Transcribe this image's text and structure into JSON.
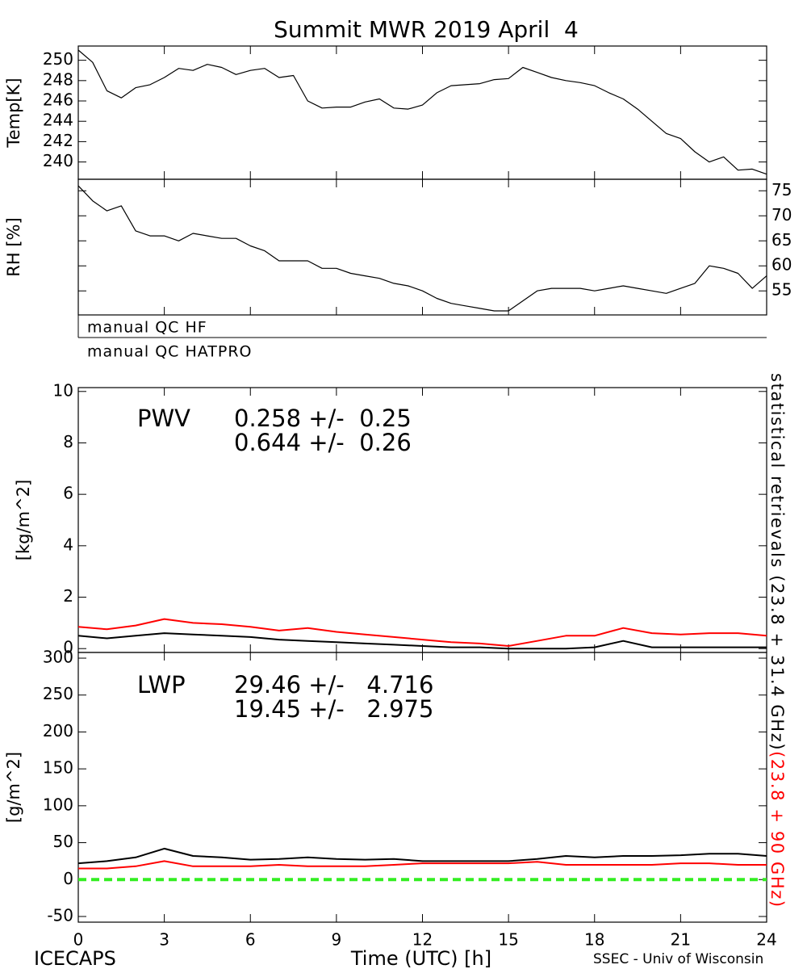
{
  "chart_data": [
    {
      "type": "line",
      "title": "Summit MWR 2019 April  4",
      "ylabel": "Temp[K]",
      "xlim": [
        0,
        24
      ],
      "xticks": [
        0,
        3,
        6,
        9,
        12,
        15,
        18,
        21,
        24
      ],
      "show_xtick_labels": false,
      "ylim": [
        238.3,
        251.4
      ],
      "yticks": [
        240,
        242,
        244,
        246,
        248,
        250
      ],
      "yaxis_side": "left",
      "x": [
        0,
        0.5,
        1,
        1.5,
        2,
        2.5,
        3,
        3.5,
        4,
        4.5,
        5,
        5.5,
        6,
        6.5,
        7,
        7.5,
        8,
        8.5,
        9,
        9.5,
        10,
        10.5,
        11,
        11.5,
        12,
        12.5,
        13,
        13.5,
        14,
        14.5,
        15,
        15.5,
        16,
        16.5,
        17,
        17.5,
        18,
        18.5,
        19,
        19.5,
        20,
        20.5,
        21,
        21.5,
        22,
        22.5,
        23,
        23.5,
        24
      ],
      "series": [
        {
          "color": "#000000",
          "values": [
            251.0,
            249.8,
            247,
            246.3,
            247.3,
            247.6,
            248.3,
            249.2,
            249.0,
            249.6,
            249.3,
            248.6,
            249.0,
            249.2,
            248.3,
            248.5,
            246,
            245.3,
            245.4,
            245.4,
            245.9,
            246.2,
            245.3,
            245.2,
            245.6,
            246.8,
            247.5,
            247.6,
            247.7,
            248.1,
            248.2,
            249.3,
            248.8,
            248.3,
            248.0,
            247.8,
            247.5,
            246.8,
            246.2,
            245.2,
            244.0,
            242.8,
            242.3,
            241.0,
            240.0,
            240.5,
            239.2,
            239.3,
            238.8
          ]
        }
      ]
    },
    {
      "type": "line",
      "ylabel": "RH [%]",
      "xlim": [
        0,
        24
      ],
      "xticks": [
        0,
        3,
        6,
        9,
        12,
        15,
        18,
        21,
        24
      ],
      "show_xtick_labels": false,
      "ylim": [
        50.2,
        77.3
      ],
      "yticks": [
        55,
        60,
        65,
        70,
        75
      ],
      "yaxis_side": "right",
      "x": [
        0,
        0.5,
        1,
        1.5,
        2,
        2.5,
        3,
        3.5,
        4,
        4.5,
        5,
        5.5,
        6,
        6.5,
        7,
        7.5,
        8,
        8.5,
        9,
        9.5,
        10,
        10.5,
        11,
        11.5,
        12,
        12.5,
        13,
        13.5,
        14,
        14.5,
        15,
        15.5,
        16,
        16.5,
        17,
        17.5,
        18,
        18.5,
        19,
        19.5,
        20,
        20.5,
        21,
        21.5,
        22,
        22.5,
        23,
        23.5,
        24
      ],
      "series": [
        {
          "color": "#000000",
          "values": [
            76,
            73,
            71,
            72,
            67,
            66,
            66,
            65,
            66.5,
            66,
            65.5,
            65.5,
            64,
            63,
            61,
            61,
            61,
            59.5,
            59.5,
            58.5,
            58,
            57.5,
            56.5,
            56,
            55,
            53.5,
            52.5,
            52,
            51.5,
            51,
            51,
            53,
            55,
            55.5,
            55.5,
            55.5,
            55,
            55.5,
            56,
            55.5,
            55,
            54.5,
            55.5,
            56.5,
            60,
            59.5,
            58.5,
            55.5,
            58
          ]
        }
      ]
    },
    {
      "type": "line",
      "ylabel": "[kg/m^2]",
      "xlim": [
        0,
        24
      ],
      "xticks": [
        0,
        3,
        6,
        9,
        12,
        15,
        18,
        21,
        24
      ],
      "show_xtick_labels": false,
      "ylim": [
        -0.15,
        10.15
      ],
      "yticks": [
        0,
        2,
        4,
        6,
        8,
        10
      ],
      "yaxis_side": "left",
      "annotations": [
        {
          "text": "PWV",
          "color": "#000000"
        },
        {
          "text": "0.258 +/-  0.25",
          "color": "#000000"
        },
        {
          "text": "0.644 +/-  0.26",
          "color": "#ff0000"
        }
      ],
      "x": [
        0,
        1,
        2,
        3,
        4,
        5,
        6,
        7,
        8,
        9,
        10,
        11,
        12,
        13,
        14,
        15,
        16,
        17,
        18,
        19,
        20,
        21,
        22,
        23,
        24
      ],
      "series": [
        {
          "color": "#000000",
          "values": [
            0.5,
            0.4,
            0.5,
            0.6,
            0.55,
            0.5,
            0.45,
            0.35,
            0.3,
            0.25,
            0.2,
            0.15,
            0.1,
            0.05,
            0.05,
            0,
            0,
            0,
            0.05,
            0.3,
            0.05,
            0.05,
            0.05,
            0.05,
            0.05
          ]
        },
        {
          "color": "#ff0000",
          "values": [
            0.85,
            0.75,
            0.9,
            1.15,
            1.0,
            0.95,
            0.85,
            0.7,
            0.8,
            0.65,
            0.55,
            0.45,
            0.35,
            0.25,
            0.2,
            0.1,
            0.3,
            0.5,
            0.5,
            0.8,
            0.6,
            0.55,
            0.6,
            0.6,
            0.5
          ]
        }
      ]
    },
    {
      "type": "line",
      "ylabel": "[g/m^2]",
      "xlabel": "Time (UTC) [h]",
      "xlim": [
        0,
        24
      ],
      "xticks": [
        0,
        3,
        6,
        9,
        12,
        15,
        18,
        21,
        24
      ],
      "show_xtick_labels": true,
      "ylim": [
        -57.7,
        307.7
      ],
      "yticks": [
        -50,
        0,
        50,
        100,
        150,
        200,
        250,
        300
      ],
      "yaxis_side": "left",
      "hline": {
        "value": 0,
        "color": "#33ee22",
        "dashed": true
      },
      "annotations": [
        {
          "text": "LWP",
          "color": "#000000"
        },
        {
          "text": "29.46 +/-   4.716",
          "color": "#000000"
        },
        {
          "text": "19.45 +/-   2.975",
          "color": "#ff0000"
        }
      ],
      "x": [
        0,
        1,
        2,
        3,
        4,
        5,
        6,
        7,
        8,
        9,
        10,
        11,
        12,
        13,
        14,
        15,
        16,
        17,
        18,
        19,
        20,
        21,
        22,
        23,
        24
      ],
      "series": [
        {
          "color": "#000000",
          "values": [
            22,
            25,
            30,
            42,
            32,
            30,
            27,
            28,
            30,
            28,
            27,
            28,
            25,
            25,
            25,
            25,
            28,
            32,
            30,
            32,
            32,
            33,
            35,
            35,
            32
          ]
        },
        {
          "color": "#ff0000",
          "values": [
            15,
            15,
            18,
            25,
            18,
            18,
            18,
            20,
            18,
            18,
            18,
            20,
            22,
            22,
            22,
            22,
            24,
            20,
            20,
            20,
            20,
            22,
            22,
            20,
            20
          ]
        }
      ]
    }
  ],
  "page": {
    "qc_labels": [
      "manual QC HF",
      "manual QC HATPRO"
    ],
    "side_labels": [
      {
        "text": "statistical retrievals (23.8 + 31.4 GHz)",
        "color": "#000000"
      },
      {
        "text": "(23.8 + 90 GHz)",
        "color": "#ff0000"
      }
    ],
    "footer_left": "ICECAPS",
    "footer_right": "SSEC - Univ of Wisconsin"
  }
}
